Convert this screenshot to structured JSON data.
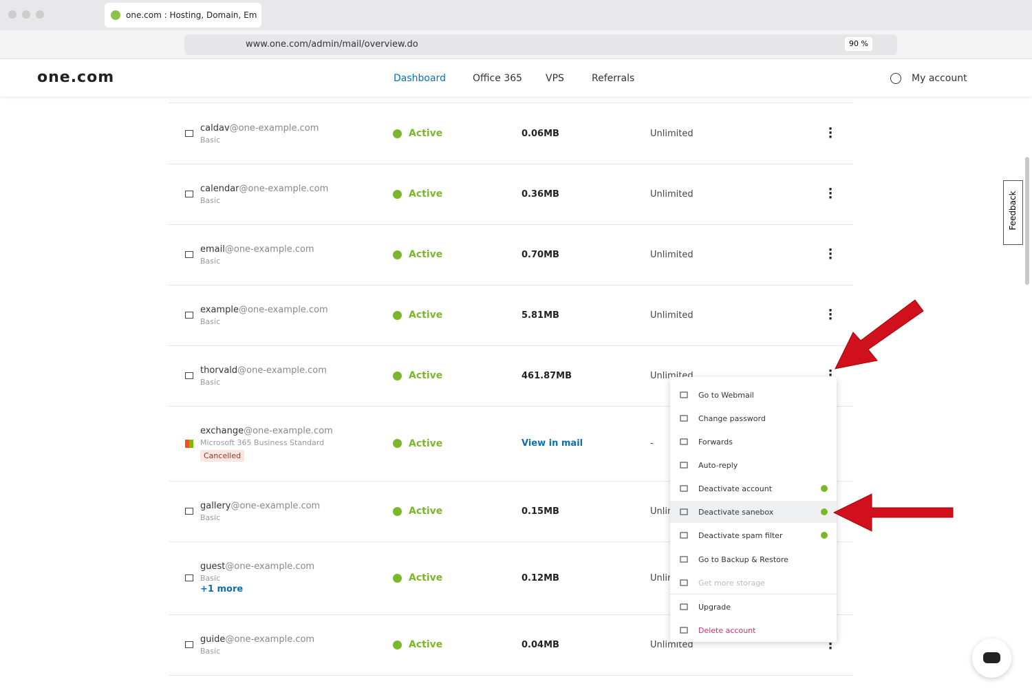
{
  "browser": {
    "tab_title": "one.com : Hosting, Domain, Em",
    "url": "www.one.com/admin/mail/overview.do",
    "zoom": "90 %"
  },
  "header": {
    "logo": "one.com",
    "nav": [
      "Dashboard",
      "Office 365",
      "VPS",
      "Referrals"
    ],
    "account": "My account"
  },
  "rows": [
    {
      "name": "caldav",
      "domain": "@one-example.com",
      "plan": "Basic",
      "status": "Active",
      "usage": "0.06MB",
      "quota": "Unlimited"
    },
    {
      "name": "calendar",
      "domain": "@one-example.com",
      "plan": "Basic",
      "status": "Active",
      "usage": "0.36MB",
      "quota": "Unlimited"
    },
    {
      "name": "email",
      "domain": "@one-example.com",
      "plan": "Basic",
      "status": "Active",
      "usage": "0.70MB",
      "quota": "Unlimited"
    },
    {
      "name": "example",
      "domain": "@one-example.com",
      "plan": "Basic",
      "status": "Active",
      "usage": "5.81MB",
      "quota": "Unlimited"
    },
    {
      "name": "thorvald",
      "domain": "@one-example.com",
      "plan": "Basic",
      "status": "Active",
      "usage": "461.87MB",
      "quota": "Unlimited"
    },
    {
      "name": "exchange",
      "domain": "@one-example.com",
      "plan": "Microsoft 365 Business Standard",
      "badge": "Cancelled",
      "status": "Active",
      "usage": "View in mail",
      "quota": "-"
    },
    {
      "name": "gallery",
      "domain": "@one-example.com",
      "plan": "Basic",
      "status": "Active",
      "usage": "0.15MB",
      "quota": "Unlimited"
    },
    {
      "name": "guest",
      "domain": "@one-example.com",
      "plan": "Basic",
      "more": "+1 more",
      "status": "Active",
      "usage": "0.12MB",
      "quota": "Unlimited"
    },
    {
      "name": "guide",
      "domain": "@one-example.com",
      "plan": "Basic",
      "status": "Active",
      "usage": "0.04MB",
      "quota": "Unlimited"
    }
  ],
  "menu": {
    "items": [
      "Go to Webmail",
      "Change password",
      "Forwards",
      "Auto-reply",
      "Deactivate account",
      "Deactivate sanebox",
      "Deactivate spam filter",
      "Go to Backup & Restore",
      "Get more storage",
      "Upgrade",
      "Delete account"
    ]
  },
  "feedback": "Feedback"
}
